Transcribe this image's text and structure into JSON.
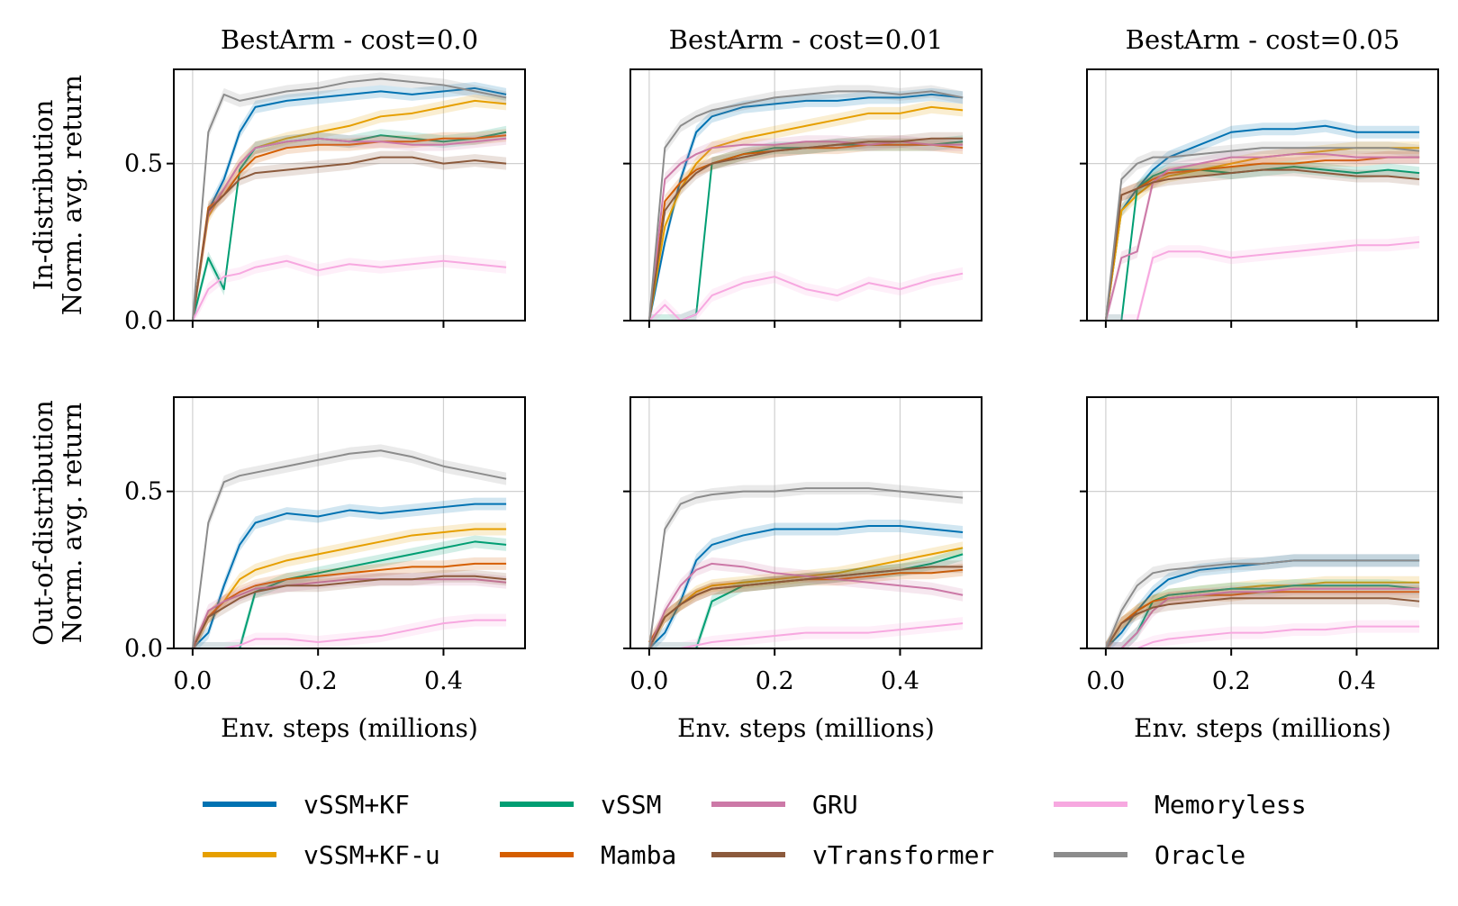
{
  "figure": {
    "x_label": "Env. steps (millions)",
    "row_labels": [
      [
        "In-distribution",
        "Norm. avg. return"
      ],
      [
        "Out-of-distribution",
        "Norm. avg. return"
      ]
    ],
    "x_ticks": [
      "0.0",
      "0.2",
      "0.4"
    ],
    "y_ticks": [
      "0.0",
      "0.5"
    ]
  },
  "legend": [
    {
      "name": "vSSM+KF",
      "color": "#0072b2"
    },
    {
      "name": "vSSM+KF-u",
      "color": "#e69f00"
    },
    {
      "name": "vSSM",
      "color": "#009e73"
    },
    {
      "name": "Mamba",
      "color": "#d55e00"
    },
    {
      "name": "GRU",
      "color": "#cc79a7"
    },
    {
      "name": "vTransformer",
      "color": "#8c5a3c"
    },
    {
      "name": "Memoryless",
      "color": "#f7a8e0"
    },
    {
      "name": "Oracle",
      "color": "#8c8c8c"
    }
  ],
  "chart_data": [
    {
      "type": "line",
      "title": "BestArm - cost=0.0",
      "row": "In-distribution",
      "xlabel": "Env. steps (millions)",
      "ylabel": "Norm. avg. return",
      "xlim": [
        -0.03,
        0.53
      ],
      "ylim": [
        0.0,
        0.8
      ],
      "grid": true,
      "x": [
        0.0,
        0.025,
        0.05,
        0.075,
        0.1,
        0.15,
        0.2,
        0.25,
        0.3,
        0.35,
        0.4,
        0.45,
        0.5
      ],
      "series": [
        {
          "name": "vSSM+KF",
          "values": [
            0.0,
            0.35,
            0.45,
            0.6,
            0.68,
            0.7,
            0.71,
            0.72,
            0.73,
            0.72,
            0.73,
            0.74,
            0.72
          ]
        },
        {
          "name": "vSSM+KF-u",
          "values": [
            0.0,
            0.33,
            0.42,
            0.5,
            0.55,
            0.58,
            0.6,
            0.62,
            0.65,
            0.66,
            0.68,
            0.7,
            0.69
          ]
        },
        {
          "name": "vSSM",
          "values": [
            0.0,
            0.2,
            0.1,
            0.48,
            0.55,
            0.57,
            0.58,
            0.57,
            0.59,
            0.58,
            0.57,
            0.58,
            0.6
          ]
        },
        {
          "name": "Mamba",
          "values": [
            0.0,
            0.36,
            0.4,
            0.47,
            0.52,
            0.55,
            0.56,
            0.56,
            0.57,
            0.57,
            0.58,
            0.58,
            0.59
          ]
        },
        {
          "name": "GRU",
          "values": [
            0.0,
            0.34,
            0.42,
            0.5,
            0.55,
            0.57,
            0.58,
            0.57,
            0.57,
            0.56,
            0.56,
            0.57,
            0.58
          ]
        },
        {
          "name": "vTransformer",
          "values": [
            0.0,
            0.35,
            0.4,
            0.45,
            0.47,
            0.48,
            0.49,
            0.5,
            0.52,
            0.52,
            0.5,
            0.51,
            0.5
          ]
        },
        {
          "name": "Memoryless",
          "values": [
            0.0,
            0.1,
            0.14,
            0.15,
            0.17,
            0.19,
            0.16,
            0.18,
            0.17,
            0.18,
            0.19,
            0.18,
            0.17
          ]
        },
        {
          "name": "Oracle",
          "values": [
            0.0,
            0.6,
            0.72,
            0.7,
            0.71,
            0.73,
            0.74,
            0.76,
            0.77,
            0.76,
            0.75,
            0.73,
            0.71
          ]
        }
      ]
    },
    {
      "type": "line",
      "title": "BestArm - cost=0.01",
      "row": "In-distribution",
      "xlabel": "Env. steps (millions)",
      "ylabel": "Norm. avg. return",
      "xlim": [
        -0.03,
        0.53
      ],
      "ylim": [
        0.0,
        0.8
      ],
      "grid": true,
      "x": [
        0.0,
        0.025,
        0.05,
        0.075,
        0.1,
        0.15,
        0.2,
        0.25,
        0.3,
        0.35,
        0.4,
        0.45,
        0.5
      ],
      "series": [
        {
          "name": "vSSM+KF",
          "values": [
            0.0,
            0.25,
            0.45,
            0.6,
            0.65,
            0.68,
            0.69,
            0.7,
            0.7,
            0.71,
            0.71,
            0.72,
            0.71
          ]
        },
        {
          "name": "vSSM+KF-u",
          "values": [
            0.0,
            0.3,
            0.42,
            0.5,
            0.55,
            0.58,
            0.6,
            0.62,
            0.64,
            0.66,
            0.66,
            0.68,
            0.67
          ]
        },
        {
          "name": "vSSM",
          "values": [
            0.0,
            0.0,
            0.0,
            0.02,
            0.5,
            0.53,
            0.55,
            0.55,
            0.56,
            0.56,
            0.56,
            0.56,
            0.57
          ]
        },
        {
          "name": "Mamba",
          "values": [
            0.0,
            0.38,
            0.44,
            0.48,
            0.5,
            0.53,
            0.54,
            0.55,
            0.55,
            0.56,
            0.56,
            0.56,
            0.55
          ]
        },
        {
          "name": "GRU",
          "values": [
            0.0,
            0.45,
            0.5,
            0.53,
            0.55,
            0.56,
            0.56,
            0.57,
            0.57,
            0.56,
            0.57,
            0.56,
            0.56
          ]
        },
        {
          "name": "vTransformer",
          "values": [
            0.0,
            0.35,
            0.42,
            0.47,
            0.5,
            0.52,
            0.54,
            0.55,
            0.56,
            0.57,
            0.57,
            0.58,
            0.58
          ]
        },
        {
          "name": "Memoryless",
          "values": [
            0.0,
            0.05,
            0.0,
            0.02,
            0.08,
            0.12,
            0.14,
            0.1,
            0.08,
            0.12,
            0.1,
            0.13,
            0.15
          ]
        },
        {
          "name": "Oracle",
          "values": [
            0.0,
            0.55,
            0.62,
            0.65,
            0.67,
            0.69,
            0.71,
            0.72,
            0.73,
            0.73,
            0.72,
            0.73,
            0.71
          ]
        }
      ]
    },
    {
      "type": "line",
      "title": "BestArm - cost=0.05",
      "row": "In-distribution",
      "xlabel": "Env. steps (millions)",
      "ylabel": "Norm. avg. return",
      "xlim": [
        -0.03,
        0.53
      ],
      "ylim": [
        0.0,
        0.8
      ],
      "grid": true,
      "x": [
        0.0,
        0.025,
        0.05,
        0.075,
        0.1,
        0.15,
        0.2,
        0.25,
        0.3,
        0.35,
        0.4,
        0.45,
        0.5
      ],
      "series": [
        {
          "name": "vSSM+KF",
          "values": [
            0.0,
            0.35,
            0.42,
            0.48,
            0.52,
            0.56,
            0.6,
            0.61,
            0.61,
            0.62,
            0.6,
            0.6,
            0.6
          ]
        },
        {
          "name": "vSSM+KF-u",
          "values": [
            0.0,
            0.35,
            0.4,
            0.44,
            0.46,
            0.48,
            0.5,
            0.52,
            0.53,
            0.54,
            0.55,
            0.55,
            0.55
          ]
        },
        {
          "name": "vSSM",
          "values": [
            0.0,
            0.0,
            0.42,
            0.46,
            0.48,
            0.48,
            0.47,
            0.48,
            0.49,
            0.48,
            0.47,
            0.48,
            0.47
          ]
        },
        {
          "name": "Mamba",
          "values": [
            0.0,
            0.4,
            0.42,
            0.45,
            0.47,
            0.48,
            0.49,
            0.5,
            0.5,
            0.51,
            0.51,
            0.52,
            0.52
          ]
        },
        {
          "name": "GRU",
          "values": [
            0.0,
            0.2,
            0.22,
            0.44,
            0.48,
            0.5,
            0.52,
            0.52,
            0.53,
            0.53,
            0.52,
            0.52,
            0.52
          ]
        },
        {
          "name": "vTransformer",
          "values": [
            0.0,
            0.4,
            0.42,
            0.44,
            0.45,
            0.46,
            0.47,
            0.48,
            0.48,
            0.47,
            0.46,
            0.46,
            0.45
          ]
        },
        {
          "name": "Memoryless",
          "values": [
            0.0,
            0.0,
            0.0,
            0.2,
            0.22,
            0.22,
            0.2,
            0.21,
            0.22,
            0.23,
            0.24,
            0.24,
            0.25
          ]
        },
        {
          "name": "Oracle",
          "values": [
            0.0,
            0.45,
            0.5,
            0.52,
            0.52,
            0.53,
            0.54,
            0.55,
            0.55,
            0.55,
            0.55,
            0.55,
            0.54
          ]
        }
      ]
    },
    {
      "type": "line",
      "title": "BestArm - cost=0.0",
      "row": "Out-of-distribution",
      "xlabel": "Env. steps (millions)",
      "ylabel": "Norm. avg. return",
      "xlim": [
        -0.03,
        0.53
      ],
      "ylim": [
        0.0,
        0.8
      ],
      "grid": true,
      "x": [
        0.0,
        0.025,
        0.05,
        0.075,
        0.1,
        0.15,
        0.2,
        0.25,
        0.3,
        0.35,
        0.4,
        0.45,
        0.5
      ],
      "series": [
        {
          "name": "vSSM+KF",
          "values": [
            0.0,
            0.05,
            0.2,
            0.33,
            0.4,
            0.43,
            0.42,
            0.44,
            0.43,
            0.44,
            0.45,
            0.46,
            0.46
          ]
        },
        {
          "name": "vSSM+KF-u",
          "values": [
            0.0,
            0.1,
            0.15,
            0.22,
            0.25,
            0.28,
            0.3,
            0.32,
            0.34,
            0.36,
            0.37,
            0.38,
            0.38
          ]
        },
        {
          "name": "vSSM",
          "values": [
            0.0,
            0.0,
            0.0,
            0.0,
            0.18,
            0.22,
            0.24,
            0.26,
            0.28,
            0.3,
            0.32,
            0.34,
            0.33
          ]
        },
        {
          "name": "Mamba",
          "values": [
            0.0,
            0.1,
            0.15,
            0.18,
            0.2,
            0.22,
            0.23,
            0.24,
            0.25,
            0.26,
            0.26,
            0.27,
            0.27
          ]
        },
        {
          "name": "GRU",
          "values": [
            0.0,
            0.12,
            0.15,
            0.17,
            0.19,
            0.2,
            0.21,
            0.22,
            0.22,
            0.22,
            0.22,
            0.22,
            0.21
          ]
        },
        {
          "name": "vTransformer",
          "values": [
            0.0,
            0.1,
            0.13,
            0.16,
            0.18,
            0.2,
            0.2,
            0.21,
            0.22,
            0.22,
            0.23,
            0.23,
            0.22
          ]
        },
        {
          "name": "Memoryless",
          "values": [
            0.0,
            0.0,
            0.0,
            0.01,
            0.03,
            0.03,
            0.02,
            0.03,
            0.04,
            0.06,
            0.08,
            0.09,
            0.09
          ]
        },
        {
          "name": "Oracle",
          "values": [
            0.0,
            0.4,
            0.53,
            0.55,
            0.56,
            0.58,
            0.6,
            0.62,
            0.63,
            0.61,
            0.58,
            0.56,
            0.54
          ]
        }
      ]
    },
    {
      "type": "line",
      "title": "BestArm - cost=0.01",
      "row": "Out-of-distribution",
      "xlabel": "Env. steps (millions)",
      "ylabel": "Norm. avg. return",
      "xlim": [
        -0.03,
        0.53
      ],
      "ylim": [
        0.0,
        0.8
      ],
      "grid": true,
      "x": [
        0.0,
        0.025,
        0.05,
        0.075,
        0.1,
        0.15,
        0.2,
        0.25,
        0.3,
        0.35,
        0.4,
        0.45,
        0.5
      ],
      "series": [
        {
          "name": "vSSM+KF",
          "values": [
            0.0,
            0.05,
            0.15,
            0.28,
            0.33,
            0.36,
            0.38,
            0.38,
            0.38,
            0.39,
            0.39,
            0.38,
            0.37
          ]
        },
        {
          "name": "vSSM+KF-u",
          "values": [
            0.0,
            0.1,
            0.14,
            0.18,
            0.2,
            0.21,
            0.22,
            0.23,
            0.24,
            0.26,
            0.28,
            0.3,
            0.32
          ]
        },
        {
          "name": "vSSM",
          "values": [
            0.0,
            0.0,
            0.0,
            0.0,
            0.15,
            0.2,
            0.21,
            0.22,
            0.23,
            0.24,
            0.25,
            0.27,
            0.3
          ]
        },
        {
          "name": "Mamba",
          "values": [
            0.02,
            0.1,
            0.14,
            0.17,
            0.19,
            0.2,
            0.21,
            0.22,
            0.22,
            0.23,
            0.24,
            0.24,
            0.25
          ]
        },
        {
          "name": "GRU",
          "values": [
            0.0,
            0.12,
            0.2,
            0.25,
            0.27,
            0.26,
            0.24,
            0.23,
            0.22,
            0.21,
            0.2,
            0.19,
            0.17
          ]
        },
        {
          "name": "vTransformer",
          "values": [
            0.0,
            0.1,
            0.14,
            0.17,
            0.19,
            0.2,
            0.21,
            0.22,
            0.23,
            0.24,
            0.25,
            0.26,
            0.26
          ]
        },
        {
          "name": "Memoryless",
          "values": [
            0.0,
            0.0,
            0.0,
            0.01,
            0.02,
            0.03,
            0.04,
            0.05,
            0.05,
            0.05,
            0.06,
            0.07,
            0.08
          ]
        },
        {
          "name": "Oracle",
          "values": [
            0.0,
            0.38,
            0.46,
            0.48,
            0.49,
            0.5,
            0.5,
            0.51,
            0.51,
            0.51,
            0.5,
            0.49,
            0.48
          ]
        }
      ]
    },
    {
      "type": "line",
      "title": "BestArm - cost=0.05",
      "row": "Out-of-distribution",
      "xlabel": "Env. steps (millions)",
      "ylabel": "Norm. avg. return",
      "xlim": [
        -0.03,
        0.53
      ],
      "ylim": [
        0.0,
        0.8
      ],
      "grid": true,
      "x": [
        0.0,
        0.025,
        0.05,
        0.075,
        0.1,
        0.15,
        0.2,
        0.25,
        0.3,
        0.35,
        0.4,
        0.45,
        0.5
      ],
      "series": [
        {
          "name": "vSSM+KF",
          "values": [
            0.0,
            0.05,
            0.12,
            0.18,
            0.22,
            0.25,
            0.26,
            0.27,
            0.28,
            0.28,
            0.28,
            0.28,
            0.28
          ]
        },
        {
          "name": "vSSM+KF-u",
          "values": [
            0.0,
            0.08,
            0.12,
            0.15,
            0.17,
            0.18,
            0.19,
            0.2,
            0.2,
            0.21,
            0.21,
            0.21,
            0.21
          ]
        },
        {
          "name": "vSSM",
          "values": [
            0.0,
            0.0,
            0.05,
            0.15,
            0.17,
            0.18,
            0.19,
            0.19,
            0.2,
            0.2,
            0.2,
            0.2,
            0.19
          ]
        },
        {
          "name": "Mamba",
          "values": [
            0.0,
            0.08,
            0.12,
            0.15,
            0.16,
            0.17,
            0.17,
            0.18,
            0.18,
            0.18,
            0.18,
            0.18,
            0.18
          ]
        },
        {
          "name": "GRU",
          "values": [
            0.0,
            0.0,
            0.05,
            0.12,
            0.16,
            0.17,
            0.18,
            0.18,
            0.19,
            0.19,
            0.19,
            0.19,
            0.19
          ]
        },
        {
          "name": "vTransformer",
          "values": [
            0.0,
            0.08,
            0.11,
            0.13,
            0.14,
            0.15,
            0.16,
            0.16,
            0.16,
            0.16,
            0.16,
            0.16,
            0.15
          ]
        },
        {
          "name": "Memoryless",
          "values": [
            0.0,
            0.0,
            0.0,
            0.02,
            0.03,
            0.04,
            0.05,
            0.05,
            0.06,
            0.06,
            0.07,
            0.07,
            0.07
          ]
        },
        {
          "name": "Oracle",
          "values": [
            0.0,
            0.12,
            0.2,
            0.24,
            0.25,
            0.26,
            0.27,
            0.27,
            0.28,
            0.28,
            0.28,
            0.28,
            0.28
          ]
        }
      ]
    }
  ]
}
